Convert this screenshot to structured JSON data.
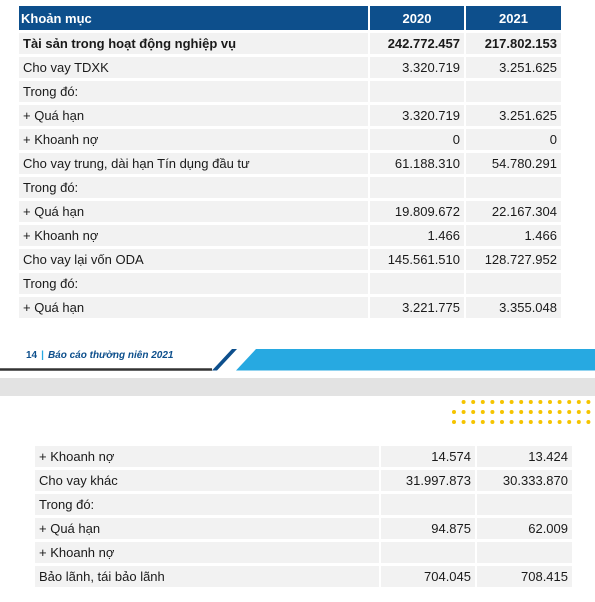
{
  "header_cut": "",
  "table_top": {
    "headers": [
      "Khoản mục",
      "2020",
      "2021"
    ],
    "rows": [
      {
        "label": "Tài sản trong hoạt động nghiệp vụ",
        "v2020": "242.772.457",
        "v2021": "217.802.153",
        "bold": true
      },
      {
        "label": "Cho vay TDXK",
        "v2020": "3.320.719",
        "v2021": "3.251.625"
      },
      {
        "label": "Trong đó:",
        "v2020": "",
        "v2021": ""
      },
      {
        "label": "+ Quá hạn",
        "v2020": "3.320.719",
        "v2021": "3.251.625"
      },
      {
        "label": "+ Khoanh nợ",
        "v2020": "0",
        "v2021": "0"
      },
      {
        "label": "Cho vay trung, dài hạn Tín dụng đầu tư",
        "v2020": "61.188.310",
        "v2021": "54.780.291"
      },
      {
        "label": "Trong đó:",
        "v2020": "",
        "v2021": ""
      },
      {
        "label": "+ Quá hạn",
        "v2020": "19.809.672",
        "v2021": "22.167.304"
      },
      {
        "label": "+ Khoanh nợ",
        "v2020": "1.466",
        "v2021": "1.466"
      },
      {
        "label": "Cho vay lại vốn ODA",
        "v2020": "145.561.510",
        "v2021": "128.727.952"
      },
      {
        "label": "Trong đó:",
        "v2020": "",
        "v2021": ""
      },
      {
        "label": "+ Quá hạn",
        "v2020": "3.221.775",
        "v2021": "3.355.048"
      }
    ]
  },
  "footer": {
    "page_number": "14",
    "title": "Báo cáo thường niên 2021"
  },
  "table_bottom": {
    "rows": [
      {
        "label": "+ Khoanh nợ",
        "v2020": "14.574",
        "v2021": "13.424"
      },
      {
        "label": "Cho vay khác",
        "v2020": "31.997.873",
        "v2021": "30.333.870"
      },
      {
        "label": "Trong đó:",
        "v2020": "",
        "v2021": ""
      },
      {
        "label": "+ Quá hạn",
        "v2020": "94.875",
        "v2021": "62.009"
      },
      {
        "label": "+ Khoanh nợ",
        "v2020": "",
        "v2021": ""
      },
      {
        "label": "Bảo lãnh, tái bảo lãnh",
        "v2020": "704.045",
        "v2021": "708.415"
      }
    ]
  },
  "colors": {
    "header_bg": "#0d4f8c",
    "row_bg": "#f2f2f2",
    "accent_cyan": "#27a9e1",
    "dots": "#f5c400"
  }
}
